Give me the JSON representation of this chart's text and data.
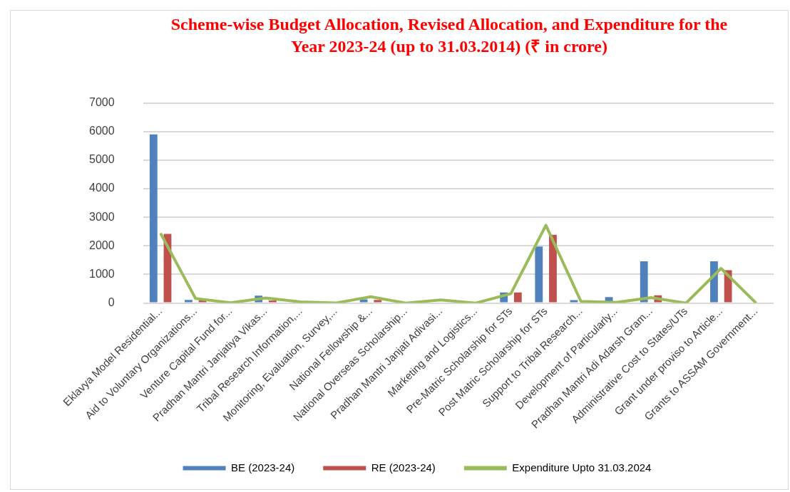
{
  "chart_data": {
    "type": "bar",
    "title": "Scheme-wise Budget Allocation, Revised Allocation, and Expenditure for the Year 2023-24 (up to 31.03.2014) (₹ in crore)",
    "categories": [
      "Eklavya Model Residential...",
      "Aid to Voluntary Organizations...",
      "Venture Capital Fund for...",
      "Pradhan Mantri Janjatiya Vikas...",
      "Tribal Research Information,...",
      "Monitoring, Evaluation, Survey,...",
      "National Fellowship &...",
      "National Overseas Scholarship...",
      "Pradhan Mantri Janjati Adivasi...",
      "Marketing and Logistics...",
      "Pre-Matric Scholarship for STs",
      "Post Matric Scholarship for STs",
      "Support to Tribal Research...",
      "Development of Particularly...",
      "Pradhan Mantri Adi Adarsh Gram...",
      "Administrative Cost to States/UTs",
      "Grant under proviso to Article...",
      "Grants to ASSAM Government..."
    ],
    "series": [
      {
        "name": "BE (2023-24)",
        "color": "#4f81bd",
        "values": [
          5900,
          110,
          0,
          260,
          0,
          0,
          130,
          0,
          0,
          0,
          370,
          1980,
          100,
          210,
          1460,
          0,
          1460,
          0
        ]
      },
      {
        "name": "RE (2023-24)",
        "color": "#c0504d",
        "values": [
          2420,
          90,
          0,
          90,
          0,
          0,
          110,
          0,
          0,
          0,
          370,
          2390,
          0,
          0,
          270,
          0,
          1150,
          0
        ]
      },
      {
        "name": "Expenditure Upto 31.03.2024",
        "type": "line",
        "color": "#9bbb59",
        "values": [
          2440,
          160,
          10,
          180,
          40,
          0,
          220,
          0,
          110,
          0,
          330,
          2720,
          60,
          20,
          190,
          0,
          1210,
          0
        ]
      }
    ],
    "ylim": [
      0,
      7000
    ],
    "yticks": [
      0,
      1000,
      2000,
      3000,
      4000,
      5000,
      6000,
      7000
    ],
    "grid": "y",
    "legend": "bottom",
    "marker": "none"
  }
}
